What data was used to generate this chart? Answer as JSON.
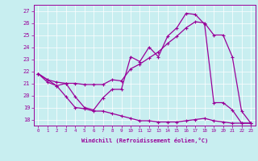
{
  "bg_color": "#c8eef0",
  "line_color": "#990099",
  "xlabel": "Windchill (Refroidissement éolien,°C)",
  "xlim": [
    -0.5,
    23.5
  ],
  "ylim": [
    17.5,
    27.5
  ],
  "yticks": [
    18,
    19,
    20,
    21,
    22,
    23,
    24,
    25,
    26,
    27
  ],
  "xticks": [
    0,
    1,
    2,
    3,
    4,
    5,
    6,
    7,
    8,
    9,
    10,
    11,
    12,
    13,
    14,
    15,
    16,
    17,
    18,
    19,
    20,
    21,
    22,
    23
  ],
  "line1_x": [
    0,
    1,
    2,
    3,
    4,
    5,
    6,
    7,
    8,
    9,
    10,
    11,
    12,
    13,
    14,
    15,
    16,
    17,
    18,
    19,
    20,
    21,
    22,
    23
  ],
  "line1_y": [
    21.8,
    21.3,
    20.8,
    21.0,
    19.9,
    19.0,
    18.8,
    19.8,
    20.5,
    20.5,
    23.2,
    22.8,
    24.0,
    23.2,
    24.9,
    25.6,
    26.8,
    26.7,
    25.9,
    19.4,
    19.4,
    18.8,
    17.7,
    17.7
  ],
  "line2_x": [
    0,
    1,
    2,
    3,
    4,
    5,
    6,
    7,
    8,
    9,
    10,
    11,
    12,
    13,
    14,
    15,
    16,
    17,
    18,
    19,
    20,
    21,
    22,
    23
  ],
  "line2_y": [
    21.8,
    21.3,
    21.1,
    21.0,
    21.0,
    20.9,
    20.9,
    20.9,
    21.3,
    21.2,
    22.2,
    22.6,
    23.1,
    23.6,
    24.3,
    24.9,
    25.6,
    26.1,
    26.0,
    25.0,
    25.0,
    23.2,
    18.7,
    17.7
  ],
  "line3_x": [
    0,
    1,
    2,
    3,
    4,
    5,
    6,
    7,
    8,
    9,
    10,
    11,
    12,
    13,
    14,
    15,
    16,
    17,
    18,
    19,
    20,
    21,
    22,
    23
  ],
  "line3_y": [
    21.8,
    21.1,
    20.8,
    19.9,
    19.0,
    18.9,
    18.7,
    18.7,
    18.5,
    18.3,
    18.1,
    17.9,
    17.9,
    17.8,
    17.8,
    17.8,
    17.9,
    18.0,
    18.1,
    17.9,
    17.8,
    17.7,
    17.7,
    17.7
  ]
}
